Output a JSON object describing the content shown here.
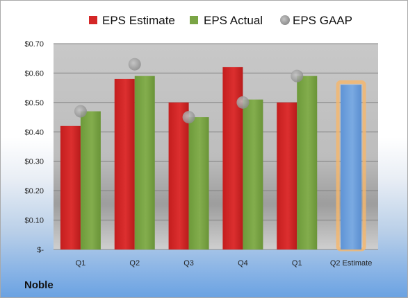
{
  "company": "Noble",
  "legend": [
    {
      "label": "EPS Estimate",
      "color": "#d42727",
      "shape": "square"
    },
    {
      "label": "EPS Actual",
      "color": "#7aa545",
      "shape": "square"
    },
    {
      "label": "EPS GAAP",
      "color": "#a6a6a6",
      "shape": "circle"
    }
  ],
  "chart_data": {
    "type": "bar",
    "categories": [
      "Q1",
      "Q2",
      "Q3",
      "Q4",
      "Q1",
      "Q2 Estimate"
    ],
    "series": [
      {
        "name": "EPS Estimate",
        "type": "bar",
        "color": "#d42727",
        "values": [
          0.42,
          0.58,
          0.5,
          0.62,
          0.5,
          null
        ]
      },
      {
        "name": "EPS Actual",
        "type": "bar",
        "color": "#7aa545",
        "values": [
          0.47,
          0.59,
          0.45,
          0.51,
          0.59,
          null
        ]
      },
      {
        "name": "EPS GAAP",
        "type": "scatter",
        "color": "#a6a6a6",
        "values": [
          0.47,
          0.63,
          0.45,
          0.5,
          0.59,
          null
        ]
      },
      {
        "name": "Q2 Estimate",
        "type": "bar",
        "color": "#6fa0dc",
        "highlight": "#f6b66a",
        "values": [
          null,
          null,
          null,
          null,
          null,
          0.56
        ]
      }
    ],
    "ylim": [
      0,
      0.7
    ],
    "yticks": [
      0,
      0.1,
      0.2,
      0.3,
      0.4,
      0.5,
      0.6,
      0.7
    ],
    "ytick_labels": [
      "$-",
      "$0.10",
      "$0.20",
      "$0.30",
      "$0.40",
      "$0.50",
      "$0.60",
      "$0.70"
    ],
    "grid": true,
    "legend_position": "top"
  }
}
